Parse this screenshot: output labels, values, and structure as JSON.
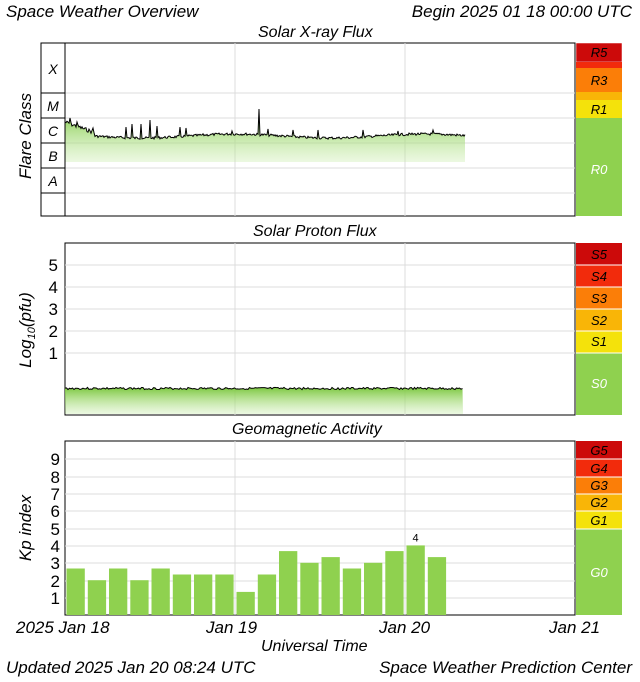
{
  "header": {
    "title": "Space Weather Overview",
    "begin": "Begin 2025 01 18 00:00 UTC"
  },
  "footer": {
    "updated": "Updated 2025 Jan 20 08:24 UTC",
    "center": "Space Weather Prediction Center"
  },
  "x_axis": {
    "label": "Universal Time",
    "ticks": [
      "2025 Jan 18",
      "Jan 19",
      "Jan 20",
      "Jan 21"
    ]
  },
  "colors": {
    "R0": "#8fd14f",
    "R1": "#f4e20b",
    "R2": "#f9b507",
    "R3": "#fb7e08",
    "R4": "#f22b0c",
    "R5": "#cc0a0a",
    "green": "#8fd14f",
    "grid": "#dddddd"
  },
  "chart_data": [
    {
      "type": "area",
      "title": "Solar X-ray Flux",
      "ylabel": "Flare Class",
      "y_classes": [
        "X",
        "M",
        "C",
        "B",
        "A"
      ],
      "scale_labels": [
        "R5",
        "R3",
        "R1",
        "R0"
      ],
      "x_range_days": [
        0,
        3
      ],
      "scale": "log",
      "summary_level": "C1"
    },
    {
      "type": "area",
      "title": "Solar Proton Flux",
      "ylabel_main": "Log",
      "ylabel_sub": "10",
      "ylabel_end": "(pfu)",
      "y_ticks": [
        "5",
        "4",
        "3",
        "2",
        "1"
      ],
      "scale_labels": [
        "S5",
        "S4",
        "S3",
        "S2",
        "S1",
        "S0"
      ],
      "x_range_days": [
        0,
        3
      ]
    },
    {
      "type": "bar",
      "title": "Geomagnetic Activity",
      "ylabel": "Kp index",
      "y_ticks": [
        "9",
        "8",
        "7",
        "6",
        "5",
        "4",
        "3",
        "2",
        "1"
      ],
      "ylim": [
        0,
        10
      ],
      "scale_labels": [
        "G5",
        "G4",
        "G3",
        "G2",
        "G1",
        "G0"
      ],
      "values": [
        2.67,
        2.0,
        2.67,
        2.0,
        2.67,
        2.33,
        2.33,
        2.33,
        1.33,
        2.33,
        3.67,
        3.0,
        3.33,
        2.67,
        3.0,
        3.67,
        4.0,
        3.33
      ],
      "peak_label": "4"
    }
  ]
}
